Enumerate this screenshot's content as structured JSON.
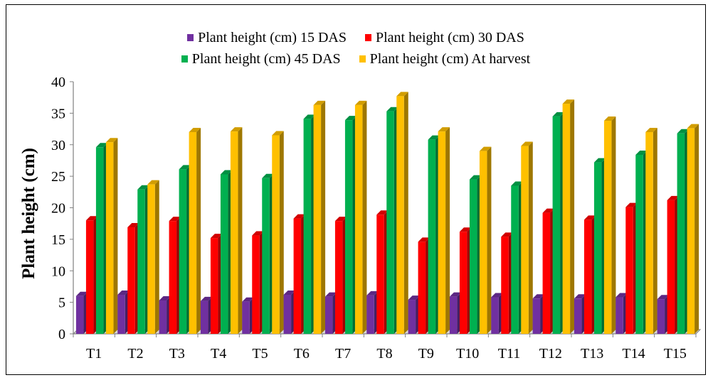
{
  "chart_data": {
    "type": "bar",
    "title": "",
    "xlabel": "",
    "ylabel": "Plant height (cm)",
    "ylim": [
      0,
      40
    ],
    "yticks": [
      0,
      5,
      10,
      15,
      20,
      25,
      30,
      35,
      40
    ],
    "grid": false,
    "legend_position": "top",
    "categories": [
      "T1",
      "T2",
      "T3",
      "T4",
      "T5",
      "T6",
      "T7",
      "T8",
      "T9",
      "T10",
      "T11",
      "T12",
      "T13",
      "T14",
      "T15"
    ],
    "series": [
      {
        "name": "Plant height (cm) 15 DAS",
        "color": "#7030A0",
        "values": [
          6.0,
          6.2,
          5.3,
          5.2,
          5.1,
          6.2,
          5.9,
          6.1,
          5.4,
          5.9,
          5.8,
          5.6,
          5.6,
          5.8,
          5.5
        ]
      },
      {
        "name": "Plant height (cm) 30 DAS",
        "color": "#FF0000",
        "values": [
          18.0,
          16.9,
          17.9,
          15.2,
          15.6,
          18.3,
          17.9,
          18.9,
          14.6,
          16.2,
          15.4,
          19.2,
          18.1,
          20.1,
          21.2
        ]
      },
      {
        "name": "Plant height (cm) 45 DAS",
        "color": "#00B050",
        "values": [
          29.6,
          22.9,
          26.1,
          25.3,
          24.7,
          34.1,
          33.9,
          35.3,
          30.8,
          24.5,
          23.5,
          34.5,
          27.2,
          28.4,
          31.8
        ]
      },
      {
        "name": "Plant height (cm) At harvest",
        "color": "#FFC000",
        "values": [
          30.4,
          23.7,
          32.0,
          32.1,
          31.5,
          36.3,
          36.3,
          37.7,
          32.1,
          29.0,
          29.8,
          36.5,
          33.8,
          32.0,
          32.6
        ]
      }
    ]
  }
}
